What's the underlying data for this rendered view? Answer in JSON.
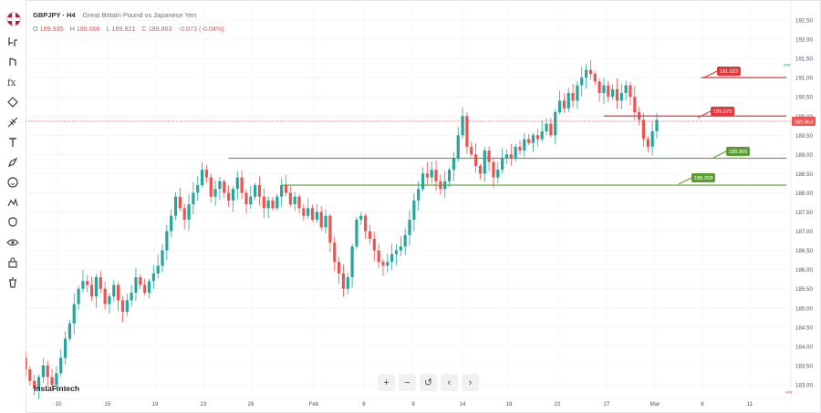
{
  "toolbar": {
    "tools": [
      "flag-icon",
      "crosshair-icon",
      "trend-line-icon",
      "fibonacci-icon",
      "patterns-icon",
      "projection-icon",
      "measure-icon",
      "text-icon",
      "brush-icon",
      "emoji-icon",
      "prediction-icon",
      "magnet-icon",
      "eye-icon",
      "lock-icon",
      "trash-icon"
    ]
  },
  "symbol": {
    "ticker": "GBPJPY · H4",
    "description": "Great Britain Pound vs Japanese Yen",
    "ohlc": {
      "open_label": "O",
      "open": "189.935",
      "high_label": "H",
      "high": "190.006",
      "low_label": "L",
      "low": "189.821",
      "close_label": "C",
      "close": "189.863",
      "change": "-0.073 (-0.04%)"
    }
  },
  "brand": "InstaFintech",
  "small_tags": {
    "top": "###",
    "bottom": "###"
  },
  "navbar": {
    "buttons": [
      "+",
      "−",
      "↺",
      "‹",
      "›"
    ]
  },
  "colors": {
    "up": "#26a69a",
    "down": "#ef5350",
    "green_level": "#5a9e2f",
    "red_level": "#e8343b",
    "grid": "#f3f4f6"
  },
  "chart_data": {
    "type": "candlestick",
    "title": "",
    "xlabel": "",
    "ylabel": "",
    "ylim": [
      182.9,
      192.6
    ],
    "y_ticks": [
      "192.50",
      "192.00",
      "191.50",
      "191.00",
      "190.50",
      "190.00",
      "189.50",
      "189.00",
      "188.50",
      "188.00",
      "187.50",
      "187.00",
      "186.50",
      "186.00",
      "185.50",
      "185.00",
      "184.50",
      "184.00",
      "183.50",
      "183.00"
    ],
    "x_ticks": [
      "10",
      "15",
      "19",
      "23",
      "26",
      "Feb",
      "6",
      "9",
      "14",
      "19",
      "22",
      "27",
      "Mar",
      "6",
      "11"
    ],
    "current_price": "189.863",
    "levels": [
      {
        "label": "191.022",
        "value": 191.0,
        "color": "red",
        "start_index": 153
      },
      {
        "label": "189.970",
        "value": 190.0,
        "color": "red",
        "start_index": 131
      },
      {
        "label": "188.906",
        "value": 188.9,
        "color": "green",
        "start_index": 46
      },
      {
        "label": "188.208",
        "value": 188.2,
        "color": "green",
        "start_index": 58
      }
    ],
    "closes": [
      183.4,
      183.1,
      182.9,
      183.2,
      183.5,
      183.2,
      183.0,
      183.3,
      183.7,
      184.2,
      184.6,
      185.1,
      185.5,
      185.7,
      185.6,
      185.3,
      185.8,
      185.5,
      185.1,
      185.3,
      185.6,
      185.2,
      184.9,
      185.2,
      185.4,
      185.8,
      185.6,
      185.4,
      185.7,
      185.9,
      186.1,
      186.5,
      187.0,
      187.4,
      187.9,
      187.6,
      187.3,
      187.7,
      188.0,
      188.2,
      188.6,
      188.4,
      187.9,
      188.1,
      188.3,
      188.0,
      187.8,
      188.1,
      188.4,
      188.0,
      187.7,
      187.9,
      188.2,
      187.9,
      187.6,
      187.8,
      187.6,
      187.9,
      188.2,
      188.0,
      187.7,
      187.9,
      187.6,
      187.4,
      187.6,
      187.3,
      187.5,
      187.1,
      187.4,
      186.7,
      186.2,
      185.9,
      185.5,
      185.8,
      186.6,
      187.3,
      187.4,
      187.0,
      186.8,
      186.5,
      186.2,
      186.1,
      186.2,
      186.4,
      186.5,
      186.6,
      186.9,
      187.3,
      187.8,
      188.1,
      188.5,
      188.4,
      188.6,
      188.3,
      188.1,
      188.3,
      188.6,
      188.9,
      189.5,
      190.0,
      189.2,
      189.0,
      188.7,
      188.5,
      189.1,
      188.8,
      188.4,
      188.6,
      188.9,
      189.0,
      188.9,
      189.2,
      189.1,
      189.4,
      189.3,
      189.5,
      189.4,
      189.6,
      189.8,
      189.5,
      190.1,
      190.4,
      190.2,
      190.6,
      190.4,
      190.8,
      191.0,
      191.2,
      191.1,
      190.9,
      190.6,
      190.8,
      190.5,
      190.7,
      190.4,
      190.6,
      190.8,
      190.5,
      190.1,
      189.9,
      189.4,
      189.2,
      189.6,
      189.9
    ]
  }
}
